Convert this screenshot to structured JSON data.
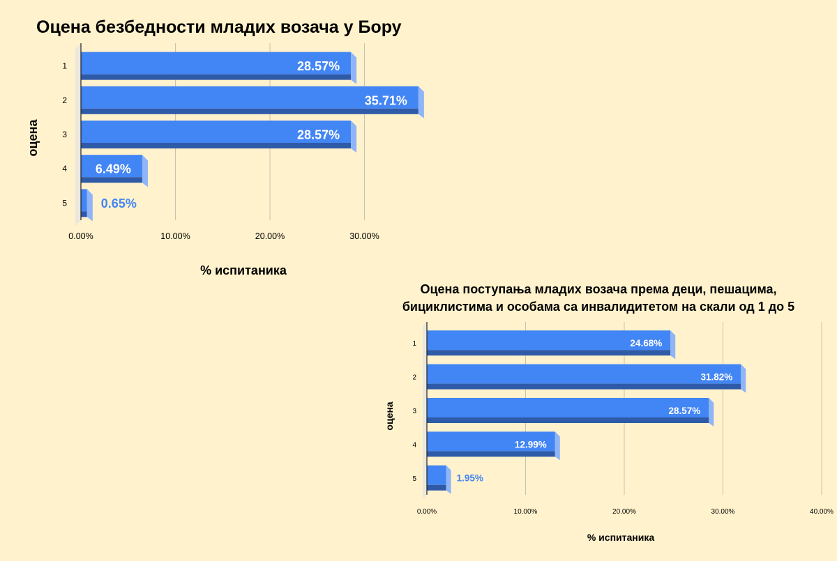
{
  "colors": {
    "background": "#fff2cc",
    "bar_front": "#4285f4",
    "bar_bottom": "#2f5aa8",
    "bar_side": "#8fb4f8",
    "wall": "#ebe7dc",
    "grid": "#c8c2b0",
    "label_outside": "#4285f4",
    "label_inside": "#ffffff",
    "text": "#000000"
  },
  "chart_data": [
    {
      "type": "bar",
      "orientation": "horizontal",
      "title": "Оцена безбедности младих возача у Бору",
      "xlabel": "% испитаника",
      "ylabel": "оцена",
      "categories": [
        "1",
        "2",
        "3",
        "4",
        "5"
      ],
      "values": [
        28.57,
        35.71,
        28.57,
        6.49,
        0.65
      ],
      "data_labels": [
        "28.57%",
        "35.71%",
        "28.57%",
        "6.49%",
        "0.65%"
      ],
      "xticks": [
        "0.00%",
        "10.00%",
        "20.00%",
        "30.00%"
      ],
      "xlim": [
        0,
        40
      ],
      "grid": true,
      "legend": "none"
    },
    {
      "type": "bar",
      "orientation": "horizontal",
      "title_lines": [
        "Оцена поступања младих возача према деци, пешацима,",
        "бициклистима и особама са инвалидитетом на скали од 1 до 5"
      ],
      "xlabel": "% испитаника",
      "ylabel": "оцена",
      "categories": [
        "1",
        "2",
        "3",
        "4",
        "5"
      ],
      "values": [
        24.68,
        31.82,
        28.57,
        12.99,
        1.95
      ],
      "data_labels": [
        "24.68%",
        "31.82%",
        "28.57%",
        "12.99%",
        "1.95%"
      ],
      "xticks": [
        "0.00%",
        "10.00%",
        "20.00%",
        "30.00%",
        "40.00%"
      ],
      "xlim": [
        0,
        40
      ],
      "grid": true,
      "legend": "none"
    }
  ]
}
